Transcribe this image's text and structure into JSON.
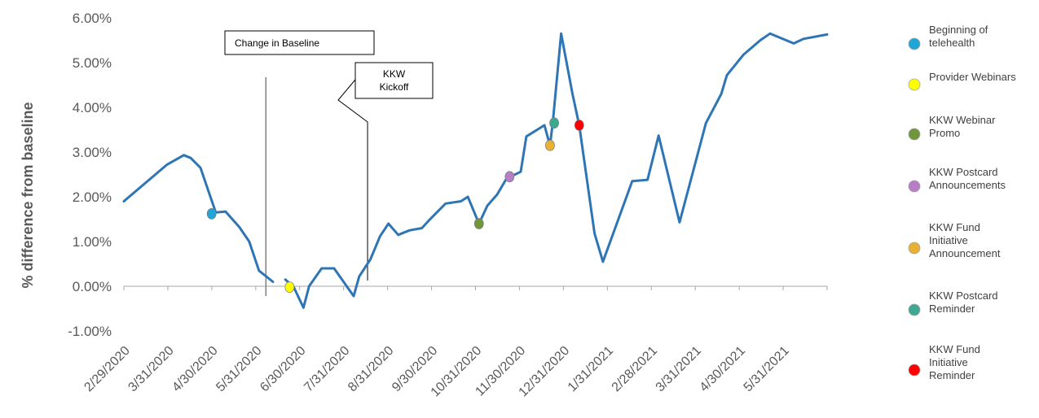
{
  "chart_data": {
    "type": "line",
    "ylabel": "% difference from baseline",
    "xlabel": "",
    "ylim": [
      -1,
      6
    ],
    "y_ticks": [
      "6.00%",
      "5.00%",
      "4.00%",
      "3.00%",
      "2.00%",
      "1.00%",
      "0.00%",
      "-1.00%"
    ],
    "x_ticks": [
      "2/29/2020",
      "3/31/2020",
      "4/30/2020",
      "5/31/2020",
      "6/30/2020",
      "7/31/2020",
      "8/31/2020",
      "9/30/2020",
      "10/31/2020",
      "11/30/2020",
      "12/31/2020",
      "1/31/2021",
      "2/28/2021",
      "3/31/2021",
      "4/30/2021",
      "5/31/2021"
    ],
    "series_color": "#2E75B6",
    "series": [
      {
        "points": [
          {
            "x": "2/29/2020",
            "y": 1.9
          },
          {
            "x": "3/31/2020",
            "y": 2.72
          },
          {
            "x": "4/12/2020",
            "y": 2.93
          },
          {
            "x": "4/17/2020",
            "y": 2.87
          },
          {
            "x": "4/24/2020",
            "y": 2.65
          },
          {
            "x": "5/5/2020",
            "y": 1.65
          },
          {
            "x": "5/12/2020",
            "y": 1.67
          },
          {
            "x": "5/22/2020",
            "y": 1.32
          },
          {
            "x": "5/29/2020",
            "y": 1.0
          },
          {
            "x": "6/5/2020",
            "y": 0.35
          },
          {
            "x": "6/15/2020",
            "y": 0.1
          },
          {
            "x": null,
            "y": null
          },
          {
            "x": "6/24/2020",
            "y": 0.15
          },
          {
            "x": "6/30/2020",
            "y": -0.02
          },
          {
            "x": "7/7/2020",
            "y": -0.48
          },
          {
            "x": "7/11/2020",
            "y": 0.0
          },
          {
            "x": "7/20/2020",
            "y": 0.4
          },
          {
            "x": "7/29/2020",
            "y": 0.4
          },
          {
            "x": "8/12/2020",
            "y": -0.22
          },
          {
            "x": "8/16/2020",
            "y": 0.22
          },
          {
            "x": "8/24/2020",
            "y": 0.6
          },
          {
            "x": "8/31/2020",
            "y": 1.12
          },
          {
            "x": "9/6/2020",
            "y": 1.4
          },
          {
            "x": "9/13/2020",
            "y": 1.15
          },
          {
            "x": "9/21/2020",
            "y": 1.25
          },
          {
            "x": "9/30/2020",
            "y": 1.3
          },
          {
            "x": "10/5/2020",
            "y": 1.47
          },
          {
            "x": "10/17/2020",
            "y": 1.85
          },
          {
            "x": "10/28/2020",
            "y": 1.9
          },
          {
            "x": "11/2/2020",
            "y": 2.0
          },
          {
            "x": "11/10/2020",
            "y": 1.4
          },
          {
            "x": "11/16/2020",
            "y": 1.8
          },
          {
            "x": "11/23/2020",
            "y": 2.05
          },
          {
            "x": "11/30/2020",
            "y": 2.42
          },
          {
            "x": "12/6/2020",
            "y": 2.5
          },
          {
            "x": "12/10/2020",
            "y": 2.56
          },
          {
            "x": "12/14/2020",
            "y": 3.35
          },
          {
            "x": "12/27/2020",
            "y": 3.6
          },
          {
            "x": "12/31/2020",
            "y": 3.15
          },
          {
            "x": "1/2/2021",
            "y": 3.65
          },
          {
            "x": "1/8/2021",
            "y": 5.65
          },
          {
            "x": "1/16/2021",
            "y": 4.32
          },
          {
            "x": "1/21/2021",
            "y": 3.6
          },
          {
            "x": "2/1/2021",
            "y": 1.18
          },
          {
            "x": "2/7/2021",
            "y": 0.55
          },
          {
            "x": "2/28/2021",
            "y": 2.35
          },
          {
            "x": "3/11/2021",
            "y": 2.38
          },
          {
            "x": "3/19/2021",
            "y": 3.37
          },
          {
            "x": "4/3/2021",
            "y": 1.43
          },
          {
            "x": "4/22/2021",
            "y": 3.65
          },
          {
            "x": "5/3/2021",
            "y": 4.3
          },
          {
            "x": "5/7/2021",
            "y": 4.72
          },
          {
            "x": "5/19/2021",
            "y": 5.18
          },
          {
            "x": "5/31/2021",
            "y": 5.5
          },
          {
            "x": "6/7/2021",
            "y": 5.65
          },
          {
            "x": "6/24/2021",
            "y": 5.43
          },
          {
            "x": "7/1/2021",
            "y": 5.53
          },
          {
            "x": "7/18/2021",
            "y": 5.63
          }
        ]
      }
    ],
    "markers": [
      {
        "label": "Beginning of telehealth",
        "x": "5/2/2020",
        "y": 1.62,
        "color": "#1FA6D8"
      },
      {
        "label": "Provider Webinars",
        "x": "6/27/2020",
        "y": -0.02,
        "color": "#FFFF00"
      },
      {
        "label": "KKW Webinar Promo",
        "x": "11/10/2020",
        "y": 1.4,
        "color": "#70963C"
      },
      {
        "label": "KKW Postcard Announcements",
        "x": "12/2/2020",
        "y": 2.45,
        "color": "#B77DC5"
      },
      {
        "label": "KKW Fund Initiative Announcement",
        "x": "12/31/2020",
        "y": 3.15,
        "color": "#E8B133"
      },
      {
        "label": "KKW Postcard Reminder",
        "x": "1/3/2021",
        "y": 3.65,
        "color": "#3FA893"
      },
      {
        "label": "KKW Fund Initiative Reminder",
        "x": "1/21/2021",
        "y": 3.6,
        "color": "#FF0000"
      }
    ],
    "annotations": [
      {
        "text": "Change in Baseline",
        "x": "6/10/2020"
      },
      {
        "text": "KKW Kickoff",
        "x": "8/22/2020"
      }
    ],
    "legend_position": "right",
    "legend": [
      {
        "lines": [
          "Beginning of",
          "telehealth"
        ],
        "color": "#1FA6D8"
      },
      {
        "lines": [
          "Provider Webinars"
        ],
        "color": "#FFFF00"
      },
      {
        "lines": [
          "KKW Webinar",
          "Promo"
        ],
        "color": "#70963C"
      },
      {
        "lines": [
          "KKW Postcard",
          "Announcements"
        ],
        "color": "#B77DC5"
      },
      {
        "lines": [
          "KKW Fund",
          "Initiative",
          "Announcement"
        ],
        "color": "#E8B133"
      },
      {
        "lines": [
          "KKW Postcard",
          "Reminder"
        ],
        "color": "#3FA893"
      },
      {
        "lines": [
          "KKW Fund",
          "Initiative",
          "Reminder"
        ],
        "color": "#FF0000"
      }
    ],
    "grid": false
  }
}
